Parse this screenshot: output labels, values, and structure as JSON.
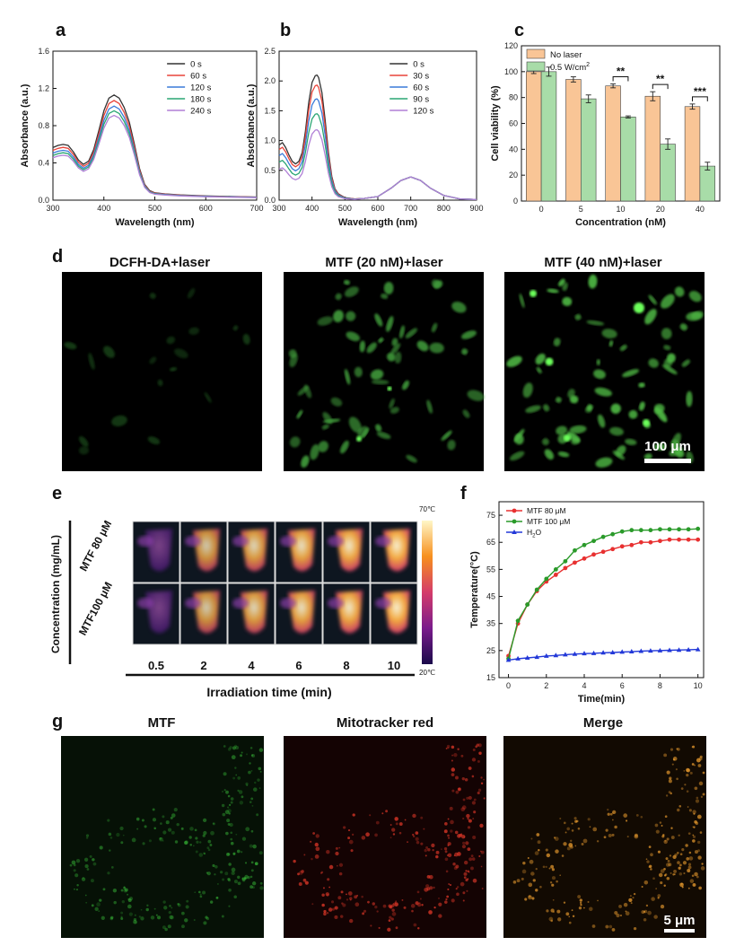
{
  "panels": {
    "a": "a",
    "b": "b",
    "c": "c",
    "d": "d",
    "e": "e",
    "f": "f",
    "g": "g"
  },
  "chart_data": [
    {
      "id": "a",
      "type": "line",
      "xlabel": "Wavelength (nm)",
      "ylabel": "Absorbance (a.u.)",
      "xlim": [
        300,
        700
      ],
      "ylim": [
        0,
        1.6
      ],
      "xticks": [
        300,
        400,
        500,
        600,
        700
      ],
      "yticks": [
        0.0,
        0.4,
        0.8,
        1.2,
        1.6
      ],
      "ytick_labels": [
        "0.0",
        "0.4",
        "0.8",
        "1.2",
        "1.6"
      ],
      "legend_position": "top-right",
      "series": [
        {
          "name": "0 s",
          "color": "#333333",
          "peak": 1.13
        },
        {
          "name": "60 s",
          "color": "#e8443a",
          "peak": 1.07
        },
        {
          "name": "120 s",
          "color": "#3a7ad9",
          "peak": 1.01
        },
        {
          "name": "180 s",
          "color": "#2aa673",
          "peak": 0.96
        },
        {
          "name": "240 s",
          "color": "#b07fd6",
          "peak": 0.91
        }
      ],
      "shape": {
        "x": [
          300,
          310,
          320,
          330,
          340,
          350,
          360,
          370,
          380,
          390,
          400,
          410,
          420,
          430,
          440,
          450,
          460,
          470,
          480,
          490,
          500,
          520,
          550,
          600,
          650,
          700
        ],
        "y_rel": [
          0.5,
          0.52,
          0.53,
          0.52,
          0.46,
          0.38,
          0.34,
          0.37,
          0.48,
          0.66,
          0.85,
          0.97,
          1.0,
          0.97,
          0.88,
          0.74,
          0.53,
          0.3,
          0.15,
          0.09,
          0.07,
          0.06,
          0.05,
          0.04,
          0.035,
          0.03
        ]
      }
    },
    {
      "id": "b",
      "type": "line",
      "xlabel": "Wavelength (nm)",
      "ylabel": "Absorbance (a.u.)",
      "xlim": [
        300,
        900
      ],
      "ylim": [
        0,
        2.5
      ],
      "xticks": [
        300,
        400,
        500,
        600,
        700,
        800,
        900
      ],
      "yticks": [
        0.0,
        0.5,
        1.0,
        1.5,
        2.0,
        2.5
      ],
      "ytick_labels": [
        "0.0",
        "0.5",
        "1.0",
        "1.5",
        "2.0",
        "2.5"
      ],
      "legend_position": "top-right",
      "series": [
        {
          "name": "0 s",
          "color": "#333333",
          "peak": 2.1
        },
        {
          "name": "30 s",
          "color": "#e8443a",
          "peak": 1.93
        },
        {
          "name": "60 s",
          "color": "#3a7ad9",
          "peak": 1.7
        },
        {
          "name": "90 s",
          "color": "#2aa673",
          "peak": 1.45
        },
        {
          "name": "120 s",
          "color": "#b07fd6",
          "peak": 1.18
        }
      ],
      "shape": {
        "x": [
          300,
          310,
          320,
          330,
          340,
          350,
          360,
          370,
          380,
          390,
          400,
          410,
          415,
          420,
          430,
          440,
          450,
          460,
          470,
          480,
          500,
          530,
          560,
          600,
          640,
          670,
          700,
          730,
          760,
          800,
          850,
          900
        ],
        "y_rel": [
          0.44,
          0.46,
          0.42,
          0.36,
          0.31,
          0.29,
          0.31,
          0.38,
          0.55,
          0.78,
          0.94,
          0.995,
          1.0,
          0.98,
          0.86,
          0.64,
          0.38,
          0.19,
          0.09,
          0.05,
          0.02,
          0.01,
          0.01,
          0.015,
          0.07,
          0.14,
          0.18,
          0.15,
          0.09,
          0.03,
          0.01,
          0.005
        ],
        "abs_from_x": 560,
        "abs_y": [
          0.03,
          0.06,
          0.2,
          0.33,
          0.39,
          0.33,
          0.2,
          0.08,
          0.02,
          0.01
        ]
      }
    },
    {
      "id": "c",
      "type": "bar",
      "xlabel": "Concentration (nM)",
      "ylabel": "Cell viability (%)",
      "categories": [
        "0",
        "5",
        "10",
        "20",
        "40"
      ],
      "ylim": [
        0,
        120
      ],
      "yticks": [
        0,
        20,
        40,
        60,
        80,
        100,
        120
      ],
      "legend_position": "top-left",
      "series": [
        {
          "name": "No laser",
          "color": "#f9c596",
          "values": [
            100,
            94,
            89,
            81,
            73
          ],
          "errors": [
            1.5,
            2,
            1.5,
            3.5,
            2
          ]
        },
        {
          "name": "0.5 W/cm",
          "name_sup": "2",
          "color": "#a8dca8",
          "values": [
            100,
            79,
            65,
            44,
            27
          ],
          "errors": [
            3.5,
            3,
            0.8,
            4,
            3
          ]
        }
      ],
      "significance": [
        {
          "category": "10",
          "label": "**"
        },
        {
          "category": "20",
          "label": "**"
        },
        {
          "category": "40",
          "label": "***"
        }
      ]
    },
    {
      "id": "f",
      "type": "line",
      "xlabel": "Time(min)",
      "ylabel": "Temperature(°C)",
      "xlim": [
        -0.5,
        10.3
      ],
      "ylim": [
        15,
        80
      ],
      "xticks": [
        0,
        2,
        4,
        6,
        8,
        10
      ],
      "yticks": [
        15,
        25,
        35,
        45,
        55,
        65,
        75
      ],
      "legend_position": "top-left",
      "series": [
        {
          "name": "MTF 80 μM",
          "color": "#e83030",
          "marker": "circle",
          "x": [
            0,
            0.5,
            1,
            1.5,
            2,
            2.5,
            3,
            3.5,
            4,
            4.5,
            5,
            5.5,
            6,
            6.5,
            7,
            7.5,
            8,
            8.5,
            9,
            9.5,
            10
          ],
          "y": [
            23,
            35,
            42,
            47,
            50.5,
            53,
            55.5,
            57.5,
            59,
            60.5,
            61.5,
            62.5,
            63.5,
            64,
            65,
            65,
            65.5,
            66,
            66,
            66,
            66
          ]
        },
        {
          "name": "MTF 100 μM",
          "color": "#2a9a2a",
          "marker": "circle",
          "x": [
            0,
            0.5,
            1,
            1.5,
            2,
            2.5,
            3,
            3.5,
            4,
            4.5,
            5,
            5.5,
            6,
            6.5,
            7,
            7.5,
            8,
            8.5,
            9,
            9.5,
            10
          ],
          "y": [
            22,
            36,
            42,
            47.5,
            51.5,
            55,
            58,
            62,
            64,
            65.5,
            67,
            68,
            69,
            69.5,
            69.5,
            69.5,
            69.8,
            69.8,
            69.8,
            69.8,
            70
          ]
        },
        {
          "name": "H",
          "name_sub": "2",
          "name_tail": "O",
          "color": "#2238d8",
          "marker": "triangle",
          "x": [
            0,
            0.5,
            1,
            1.5,
            2,
            2.5,
            3,
            3.5,
            4,
            4.5,
            5,
            5.5,
            6,
            6.5,
            7,
            7.5,
            8,
            8.5,
            9,
            9.5,
            10
          ],
          "y": [
            21.5,
            22,
            22.3,
            22.6,
            23,
            23.2,
            23.5,
            23.7,
            23.9,
            24,
            24.2,
            24.3,
            24.5,
            24.6,
            24.8,
            24.9,
            25,
            25.1,
            25.2,
            25.3,
            25.4
          ]
        }
      ]
    }
  ],
  "panel_d": {
    "titles": [
      "DCFH-DA+laser",
      "MTF (20 nM)+laser",
      "MTF (40 nM)+laser"
    ],
    "scale_bar": "100 μm"
  },
  "panel_e": {
    "ylabel": "Concentration (mg/mL)",
    "row_labels": [
      "MTF 80 μM",
      "MTF100 μM"
    ],
    "time_labels": [
      "0.5",
      "2",
      "4",
      "6",
      "8",
      "10"
    ],
    "xlabel": "Irradiation time (min)",
    "colorbar_max": "70℃",
    "colorbar_min": "20℃",
    "heat_levels": [
      0.15,
      0.55,
      0.68,
      0.78,
      0.85,
      0.92
    ]
  },
  "panel_g": {
    "titles": [
      "MTF",
      "Mitotracker red",
      "Merge"
    ],
    "scale_bar": "5 μm"
  }
}
